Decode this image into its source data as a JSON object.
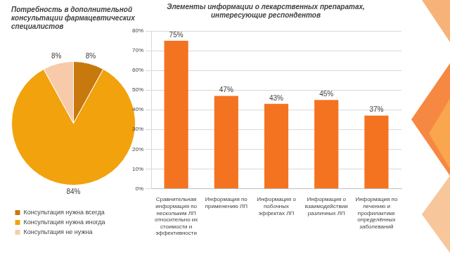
{
  "chart_data": [
    {
      "type": "pie",
      "title": "Потребность в дополнительной консультации фармацевтических специалистов",
      "categories": [
        "Консультация нужна всегда",
        "Консультация нужна иногда",
        "Консультация не нужна"
      ],
      "values": [
        8,
        84,
        8
      ],
      "value_labels": [
        "8%",
        "84%",
        "8%"
      ],
      "colors": [
        "#c8790e",
        "#f1a20c",
        "#f7cba9"
      ],
      "data_labels": true,
      "legend": "bottom"
    },
    {
      "type": "bar",
      "title": "Элементы информации о лекарственных препаратах, интересующие респондентов",
      "categories": [
        "Сравнительная информация по нескольким ЛП относительно их стоимости и эффективности",
        "Информация по применению ЛП",
        "Информация о побочных эффектах ЛП",
        "Информация о взаимодействии различных ЛП",
        "Информация по лечению и профилактике определённых заболеваний"
      ],
      "values": [
        75,
        47,
        43,
        45,
        37
      ],
      "value_labels": [
        "75%",
        "47%",
        "43%",
        "45%",
        "37%"
      ],
      "color": "#f47321",
      "ylim": [
        0,
        80
      ],
      "yticks": [
        {
          "value": 0,
          "label": "0%"
        },
        {
          "value": 10,
          "label": "10%"
        },
        {
          "value": 20,
          "label": "20%"
        },
        {
          "value": 30,
          "label": "30%"
        },
        {
          "value": 40,
          "label": "40%"
        },
        {
          "value": 50,
          "label": "50%"
        },
        {
          "value": 60,
          "label": "60%"
        },
        {
          "value": 70,
          "label": "70%"
        },
        {
          "value": 80,
          "label": "80%"
        }
      ],
      "grid": true,
      "data_labels": true
    }
  ]
}
